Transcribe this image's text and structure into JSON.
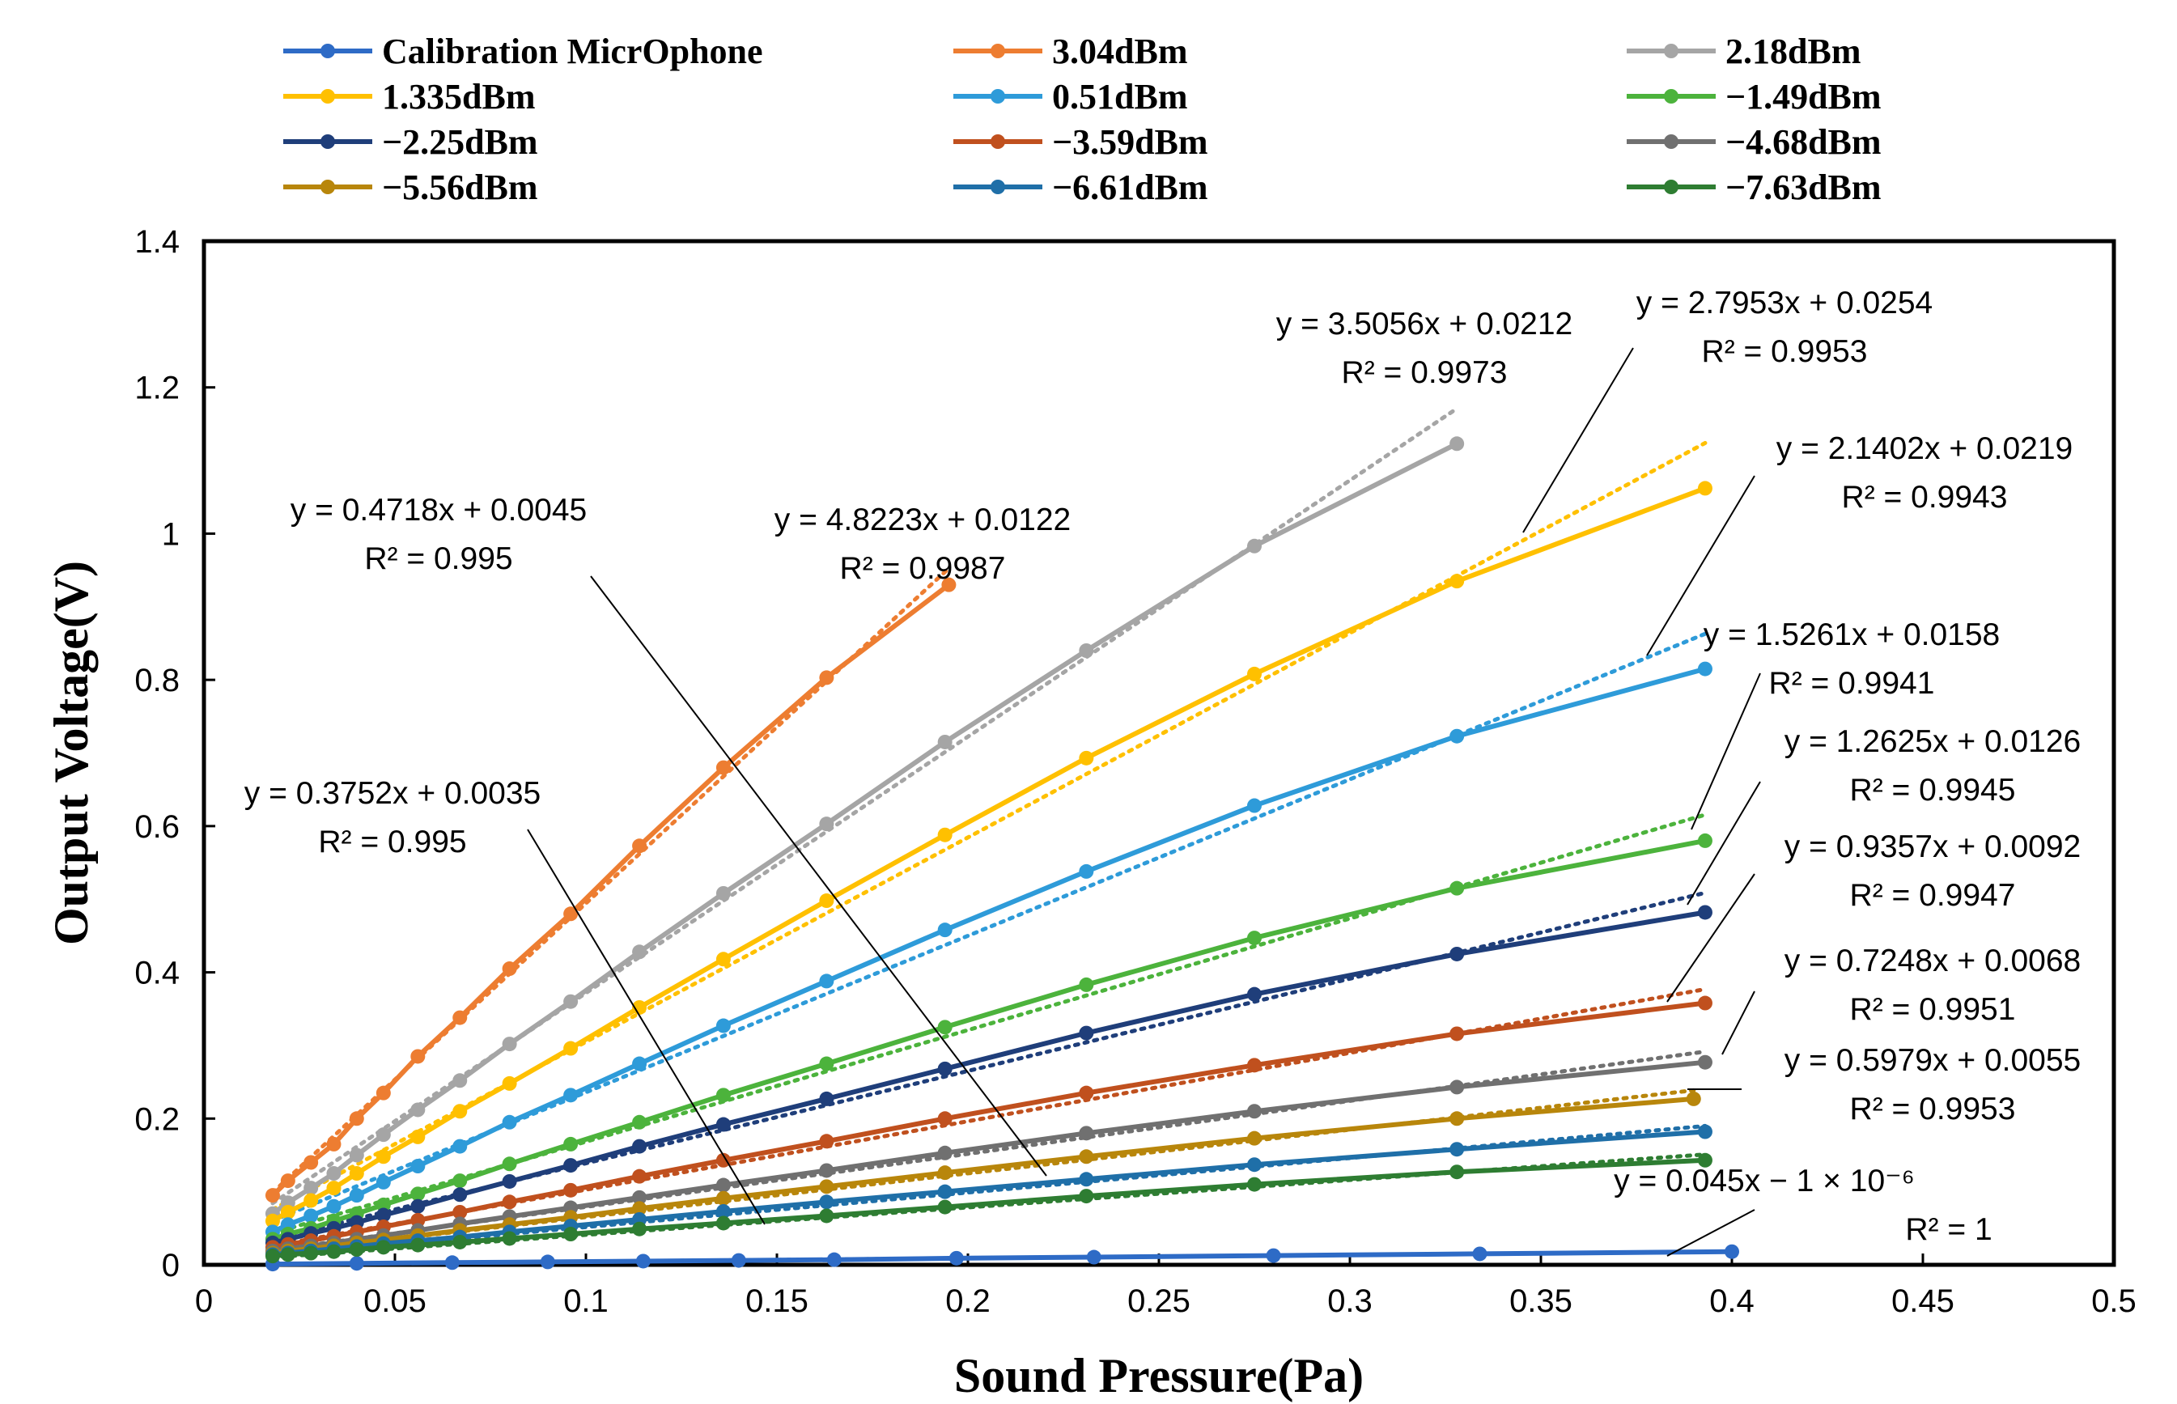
{
  "chart_data": {
    "type": "line",
    "xlabel": "Sound Pressure(Pa)",
    "ylabel": "Output Voltage(V)",
    "xlim": [
      0,
      0.5
    ],
    "ylim": [
      0,
      1.4
    ],
    "x_ticks": [
      "0",
      "0.05",
      "0.1",
      "0.15",
      "0.2",
      "0.25",
      "0.3",
      "0.35",
      "0.4",
      "0.45",
      "0.5"
    ],
    "y_ticks": [
      "0",
      "0.2",
      "0.4",
      "0.6",
      "0.8",
      "1",
      "1.2",
      "1.4"
    ],
    "x_tick_values": [
      0,
      0.05,
      0.1,
      0.15,
      0.2,
      0.25,
      0.3,
      0.35,
      0.4,
      0.45,
      0.5
    ],
    "y_tick_values": [
      0,
      0.2,
      0.4,
      0.6,
      0.8,
      1.0,
      1.2,
      1.4
    ],
    "legend_position": "top",
    "series": [
      {
        "name": "Calibration MicrOphone",
        "color": "#2E6BC6",
        "slope": 0.045,
        "intercept": 0,
        "x": [
          0.018,
          0.04,
          0.065,
          0.09,
          0.115,
          0.14,
          0.165,
          0.197,
          0.233,
          0.28,
          0.334,
          0.4
        ],
        "y": [
          0.001,
          0.002,
          0.003,
          0.004,
          0.005,
          0.006,
          0.007,
          0.009,
          0.0105,
          0.0126,
          0.015,
          0.018
        ],
        "equation": "y = 0.045x − 1 × 10⁻⁶",
        "r2": "R² = 1"
      },
      {
        "name": "3.04dBm",
        "color": "#ED7D31",
        "slope": 4.8223,
        "intercept": 0.0122,
        "x": [
          0.018,
          0.022,
          0.028,
          0.034,
          0.04,
          0.047,
          0.056,
          0.067,
          0.08,
          0.096,
          0.114,
          0.136,
          0.163,
          0.195
        ],
        "y": [
          0.095,
          0.115,
          0.14,
          0.165,
          0.2,
          0.235,
          0.285,
          0.338,
          0.405,
          0.48,
          0.573,
          0.68,
          0.803,
          0.93
        ],
        "equation": "y = 4.8223x + 0.0122",
        "r2": "R² = 0.9987"
      },
      {
        "name": "2.18dBm",
        "color": "#A5A5A5",
        "slope": 3.5056,
        "intercept": 0.0212,
        "x": [
          0.018,
          0.022,
          0.028,
          0.034,
          0.04,
          0.047,
          0.056,
          0.067,
          0.08,
          0.096,
          0.114,
          0.136,
          0.163,
          0.194,
          0.231,
          0.275,
          0.328
        ],
        "y": [
          0.07,
          0.085,
          0.105,
          0.125,
          0.15,
          0.178,
          0.212,
          0.252,
          0.302,
          0.36,
          0.428,
          0.508,
          0.603,
          0.715,
          0.84,
          0.983,
          1.123
        ],
        "equation": "y = 3.5056x + 0.0212",
        "r2": "R² = 0.9973"
      },
      {
        "name": "1.335dBm",
        "color": "#FFC000",
        "slope": 2.7953,
        "intercept": 0.0254,
        "x": [
          0.018,
          0.022,
          0.028,
          0.034,
          0.04,
          0.047,
          0.056,
          0.067,
          0.08,
          0.096,
          0.114,
          0.136,
          0.163,
          0.194,
          0.231,
          0.275,
          0.328,
          0.393
        ],
        "y": [
          0.06,
          0.072,
          0.088,
          0.105,
          0.125,
          0.148,
          0.175,
          0.21,
          0.248,
          0.296,
          0.352,
          0.418,
          0.498,
          0.588,
          0.693,
          0.808,
          0.935,
          1.062
        ],
        "equation": "y = 2.7953x + 0.0254",
        "r2": "R² = 0.9953"
      },
      {
        "name": "0.51dBm",
        "color": "#2E9BD9",
        "slope": 2.1402,
        "intercept": 0.0219,
        "x": [
          0.018,
          0.022,
          0.028,
          0.034,
          0.04,
          0.047,
          0.056,
          0.067,
          0.08,
          0.096,
          0.114,
          0.136,
          0.163,
          0.194,
          0.231,
          0.275,
          0.328,
          0.393
        ],
        "y": [
          0.045,
          0.055,
          0.067,
          0.08,
          0.095,
          0.113,
          0.135,
          0.162,
          0.195,
          0.232,
          0.275,
          0.327,
          0.388,
          0.458,
          0.538,
          0.628,
          0.723,
          0.815
        ],
        "equation": "y = 2.1402x + 0.0219",
        "r2": "R² = 0.9943"
      },
      {
        "name": "−1.49dBm",
        "color": "#4CB33C",
        "slope": 1.5261,
        "intercept": 0.0158,
        "x": [
          0.018,
          0.022,
          0.028,
          0.034,
          0.04,
          0.047,
          0.056,
          0.067,
          0.08,
          0.096,
          0.114,
          0.136,
          0.163,
          0.194,
          0.231,
          0.275,
          0.328,
          0.393
        ],
        "y": [
          0.035,
          0.042,
          0.05,
          0.06,
          0.07,
          0.082,
          0.097,
          0.115,
          0.138,
          0.165,
          0.195,
          0.232,
          0.275,
          0.325,
          0.383,
          0.447,
          0.515,
          0.58
        ],
        "equation": "y = 1.5261x + 0.0158",
        "r2": "R² = 0.9941"
      },
      {
        "name": "−2.25dBm",
        "color": "#1F3E7A",
        "slope": 1.2625,
        "intercept": 0.0126,
        "x": [
          0.018,
          0.022,
          0.028,
          0.034,
          0.04,
          0.047,
          0.056,
          0.067,
          0.08,
          0.096,
          0.114,
          0.136,
          0.163,
          0.194,
          0.231,
          0.275,
          0.328,
          0.393
        ],
        "y": [
          0.03,
          0.035,
          0.043,
          0.05,
          0.058,
          0.068,
          0.08,
          0.096,
          0.114,
          0.136,
          0.162,
          0.192,
          0.227,
          0.268,
          0.317,
          0.37,
          0.425,
          0.482
        ],
        "equation": "y = 1.2625x + 0.0126",
        "r2": "R² = 0.9945"
      },
      {
        "name": "−3.59dBm",
        "color": "#C0501E",
        "slope": 0.9357,
        "intercept": 0.0092,
        "x": [
          0.018,
          0.022,
          0.028,
          0.034,
          0.04,
          0.047,
          0.056,
          0.067,
          0.08,
          0.096,
          0.114,
          0.136,
          0.163,
          0.194,
          0.231,
          0.275,
          0.328,
          0.393
        ],
        "y": [
          0.024,
          0.028,
          0.033,
          0.039,
          0.045,
          0.052,
          0.061,
          0.072,
          0.086,
          0.102,
          0.121,
          0.143,
          0.169,
          0.2,
          0.235,
          0.273,
          0.316,
          0.358
        ],
        "equation": "y = 0.9357x + 0.0092",
        "r2": "R² = 0.9947"
      },
      {
        "name": "−4.68dBm",
        "color": "#707070",
        "slope": 0.7248,
        "intercept": 0.0068,
        "x": [
          0.018,
          0.022,
          0.028,
          0.034,
          0.04,
          0.047,
          0.056,
          0.067,
          0.08,
          0.096,
          0.114,
          0.136,
          0.163,
          0.194,
          0.231,
          0.275,
          0.328,
          0.393
        ],
        "y": [
          0.019,
          0.022,
          0.026,
          0.03,
          0.035,
          0.04,
          0.047,
          0.056,
          0.066,
          0.078,
          0.092,
          0.109,
          0.129,
          0.153,
          0.18,
          0.21,
          0.243,
          0.277
        ],
        "equation": "y = 0.7248x + 0.0068",
        "r2": "R² = 0.9951"
      },
      {
        "name": "−5.56dBm",
        "color": "#B8860B",
        "slope": 0.5979,
        "intercept": 0.0055,
        "x": [
          0.018,
          0.022,
          0.028,
          0.034,
          0.04,
          0.047,
          0.056,
          0.067,
          0.08,
          0.096,
          0.114,
          0.136,
          0.163,
          0.194,
          0.231,
          0.275,
          0.328,
          0.39
        ],
        "y": [
          0.016,
          0.019,
          0.022,
          0.026,
          0.03,
          0.034,
          0.04,
          0.047,
          0.055,
          0.065,
          0.077,
          0.091,
          0.107,
          0.126,
          0.148,
          0.173,
          0.2,
          0.227
        ],
        "equation": "y = 0.5979x + 0.0055",
        "r2": "R² = 0.9953"
      },
      {
        "name": "−6.61dBm",
        "color": "#1F6FA8",
        "slope": 0.4718,
        "intercept": 0.0045,
        "x": [
          0.018,
          0.022,
          0.028,
          0.034,
          0.04,
          0.047,
          0.056,
          0.067,
          0.08,
          0.096,
          0.114,
          0.136,
          0.163,
          0.194,
          0.231,
          0.275,
          0.328,
          0.393
        ],
        "y": [
          0.014,
          0.016,
          0.019,
          0.022,
          0.025,
          0.029,
          0.033,
          0.038,
          0.045,
          0.053,
          0.062,
          0.073,
          0.086,
          0.1,
          0.117,
          0.137,
          0.158,
          0.182
        ],
        "equation": "y = 0.4718x + 0.0045",
        "r2": "R² = 0.995"
      },
      {
        "name": "−7.63dBm",
        "color": "#2E7D32",
        "slope": 0.3752,
        "intercept": 0.0035,
        "x": [
          0.018,
          0.022,
          0.028,
          0.034,
          0.04,
          0.047,
          0.056,
          0.067,
          0.08,
          0.096,
          0.114,
          0.136,
          0.163,
          0.194,
          0.231,
          0.275,
          0.328,
          0.393
        ],
        "y": [
          0.012,
          0.014,
          0.016,
          0.018,
          0.021,
          0.024,
          0.027,
          0.031,
          0.036,
          0.042,
          0.049,
          0.057,
          0.067,
          0.079,
          0.094,
          0.11,
          0.127,
          0.143
        ],
        "equation": "y = 0.3752x + 0.0035",
        "r2": "R² = 0.995"
      }
    ]
  }
}
